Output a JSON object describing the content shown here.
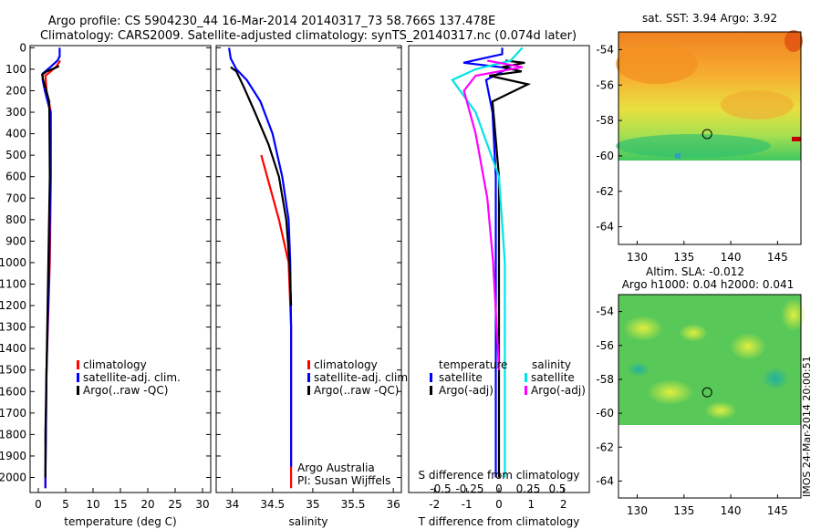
{
  "header": {
    "line1": "Argo profile: CS 5904230_44 16-Mar-2014 20140317_73 58.766S 137.478E",
    "line2": "Climatology: CARS2009. Satellite-adjusted climatology: synTS_20140317.nc (0.074d later)"
  },
  "colors": {
    "climatology": "#ff0000",
    "satellite": "#0000ff",
    "argo": "#000000",
    "salinity_satellite": "#00e5e5",
    "salinity_argo": "#ff00ff"
  },
  "chart_data": [
    {
      "type": "line",
      "name": "temperature-profile",
      "xlabel": "temperature (deg C)",
      "xlim": [
        -1.5,
        31.5
      ],
      "xticks": [
        "0",
        "5",
        "10",
        "15",
        "20",
        "25",
        "30"
      ],
      "xtick_values": [
        0,
        5,
        10,
        15,
        20,
        25,
        30
      ],
      "ylim": [
        2070,
        -10
      ],
      "yticks": [
        "0",
        "100",
        "200",
        "300",
        "400",
        "500",
        "600",
        "700",
        "800",
        "900",
        "1000",
        "1100",
        "1200",
        "1300",
        "1400",
        "1500",
        "1600",
        "1700",
        "1800",
        "1900",
        "2000"
      ],
      "ytick_values": [
        0,
        100,
        200,
        300,
        400,
        500,
        600,
        700,
        800,
        900,
        1000,
        1100,
        1200,
        1300,
        1400,
        1500,
        1600,
        1700,
        1800,
        1900,
        2000
      ],
      "legend": [
        "climatology",
        "satellite-adj. clim.",
        "Argo(..raw -QC)"
      ],
      "series": [
        {
          "name": "climatology",
          "x": [
            4.0,
            3.2,
            1.3,
            1.5,
            2.3,
            2.3,
            2.1,
            1.5,
            1.3,
            1.3
          ],
          "y": [
            60,
            90,
            130,
            200,
            300,
            600,
            1000,
            1500,
            2000,
            2050
          ]
        },
        {
          "name": "satellite-adj. clim.",
          "x": [
            3.9,
            3.9,
            3.5,
            2.2,
            0.8,
            0.8,
            1.2,
            2.2,
            2.2,
            2.0,
            1.5,
            1.3,
            1.3
          ],
          "y": [
            0,
            40,
            60,
            90,
            120,
            150,
            200,
            300,
            600,
            1000,
            1500,
            2000,
            2050
          ]
        },
        {
          "name": "Argo(..raw -QC)",
          "x": [
            3.8,
            3.0,
            1.5,
            0.7,
            0.9,
            2.0,
            2.1,
            1.7,
            1.3,
            1.3
          ],
          "y": [
            85,
            95,
            110,
            125,
            150,
            250,
            600,
            1200,
            1800,
            2000
          ]
        }
      ]
    },
    {
      "type": "line",
      "name": "salinity-profile",
      "xlabel": "salinity",
      "xlim": [
        33.8,
        36.1
      ],
      "xticks": [
        "34",
        "34.5",
        "35",
        "35.5",
        "36"
      ],
      "xtick_values": [
        34,
        34.5,
        35,
        35.5,
        36
      ],
      "ylim": [
        2070,
        -10
      ],
      "legend": [
        "climatology",
        "satellite-adj. clim.",
        "Argo(..raw -QC)"
      ],
      "notes": [
        "Argo Australia",
        "PI: Susan Wijffels"
      ],
      "series": [
        {
          "name": "climatology",
          "x": [
            34.36,
            34.58,
            34.7,
            34.73,
            34.73
          ],
          "y": [
            500,
            800,
            1000,
            1300,
            2050
          ]
        },
        {
          "name": "satellite-adj. clim.",
          "x": [
            33.96,
            33.98,
            34.05,
            34.18,
            34.35,
            34.5,
            34.62,
            34.7,
            34.72,
            34.73,
            34.73,
            34.73
          ],
          "y": [
            0,
            50,
            100,
            150,
            250,
            400,
            600,
            800,
            1000,
            1300,
            1700,
            1950
          ]
        },
        {
          "name": "Argo(..raw -QC)",
          "x": [
            33.98,
            34.05,
            34.14,
            34.28,
            34.45,
            34.58,
            34.67,
            34.71,
            34.73
          ],
          "y": [
            90,
            110,
            180,
            300,
            450,
            600,
            800,
            1000,
            1200
          ]
        }
      ]
    },
    {
      "type": "line",
      "name": "difference-profile",
      "xlabel": "T difference from climatology",
      "x2label": "S difference from climatology",
      "xlim": [
        -2.8,
        2.8
      ],
      "xticks": [
        "-2",
        "-1",
        "0",
        "1",
        "2"
      ],
      "xtick_values": [
        -2,
        -1,
        0,
        1,
        2
      ],
      "x2ticks": [
        "-0.5",
        "-0.25",
        "0",
        "0.25",
        "0.5"
      ],
      "x2tick_values": [
        -0.5,
        -0.25,
        0,
        0.25,
        0.5
      ],
      "ylim": [
        2070,
        -10
      ],
      "legend_titles": [
        "temperature",
        "salinity"
      ],
      "legend": [
        "satellite",
        "Argo(-adj)",
        "satellite",
        "Argo(-adj)"
      ],
      "series": [
        {
          "name": "satellite",
          "x": [
            0.1,
            0.1,
            -0.5,
            -1.1,
            0.3,
            -0.4,
            -0.2,
            -0.1,
            -0.1,
            -0.1,
            -0.1
          ],
          "y": [
            0,
            30,
            50,
            70,
            95,
            150,
            300,
            600,
            1000,
            1500,
            2000
          ]
        },
        {
          "name": "Argo(-adj)",
          "x": [
            0.2,
            0.8,
            0.1,
            0.7,
            -0.3,
            0.9,
            -0.2,
            0.0,
            0.0,
            0.0
          ],
          "y": [
            60,
            70,
            90,
            110,
            130,
            170,
            250,
            600,
            1200,
            2000
          ]
        },
        {
          "name": "salinity satellite",
          "x": [
            0.2,
            0.1,
            -0.2,
            -0.4,
            -0.2,
            0.0,
            0.05,
            0.05
          ],
          "y": [
            0,
            60,
            100,
            150,
            300,
            600,
            1000,
            2000
          ]
        },
        {
          "name": "salinity Argo(-adj)",
          "x": [
            -0.1,
            0.2,
            -0.2,
            -0.3,
            -0.2,
            -0.1,
            -0.05,
            0.0
          ],
          "y": [
            60,
            90,
            130,
            200,
            400,
            700,
            1000,
            1500
          ]
        }
      ]
    },
    {
      "type": "heatmap",
      "name": "sst-map",
      "title": "sat. SST: 3.94 Argo: 3.92",
      "xlim": [
        128,
        147.5
      ],
      "ylim": [
        -65,
        -53
      ],
      "xticks": [
        "130",
        "135",
        "140",
        "145"
      ],
      "xtick_values": [
        130,
        135,
        140,
        145
      ],
      "yticks": [
        "-54",
        "-56",
        "-58",
        "-60",
        "-62",
        "-64"
      ],
      "ytick_values": [
        -54,
        -56,
        -58,
        -60,
        -62,
        -64
      ],
      "data_lat_min": -60.1,
      "marker": {
        "lon": 137.478,
        "lat": -58.766
      }
    },
    {
      "type": "heatmap",
      "name": "sla-map",
      "title": "Altim. SLA: -0.012",
      "subtitle": "Argo h1000: 0.04 h2000: 0.041",
      "xlim": [
        128,
        147.5
      ],
      "ylim": [
        -65,
        -53
      ],
      "xticks": [
        "130",
        "135",
        "140",
        "145"
      ],
      "xtick_values": [
        130,
        135,
        140,
        145
      ],
      "yticks": [
        "-54",
        "-56",
        "-58",
        "-60",
        "-62",
        "-64"
      ],
      "ytick_values": [
        -54,
        -56,
        -58,
        -60,
        -62,
        -64
      ],
      "data_lat_min": -60.1,
      "marker": {
        "lon": 137.478,
        "lat": -58.766
      }
    }
  ],
  "side_label": "IMOS 24-Mar-2014 20:00:51"
}
